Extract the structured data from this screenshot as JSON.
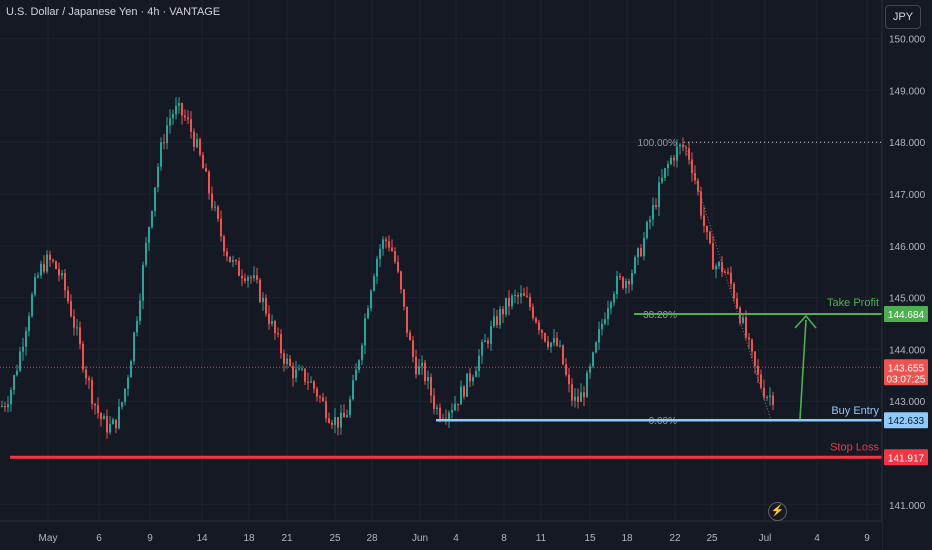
{
  "header": {
    "symbol_title": "U.S. Dollar / Japanese Yen · 4h · VANTAGE",
    "currency_button": "JPY"
  },
  "colors": {
    "background": "#151924",
    "grid": "#1e222d",
    "up": "#26a69a",
    "down": "#ef5350",
    "take_profit": "#4caf50",
    "buy_entry": "#90caf9",
    "stop_loss": "#f23645",
    "axis_text": "#b2b5be"
  },
  "icons": {
    "alert": "lightning-bolt-icon"
  },
  "chart_data": {
    "type": "candlestick",
    "y_axis": {
      "range": [
        140.7,
        150.3
      ],
      "ticks": [
        "150.000",
        "149.000",
        "148.000",
        "147.000",
        "146.000",
        "145.000",
        "144.000",
        "143.000",
        "141.000"
      ]
    },
    "x_axis": {
      "ticks": [
        "May",
        "6",
        "9",
        "14",
        "18",
        "21",
        "25",
        "28",
        "Jun",
        "4",
        "8",
        "11",
        "15",
        "18",
        "22",
        "25",
        "Jul",
        "4",
        "9"
      ]
    },
    "anchor_points": [
      {
        "x": "May",
        "y": 142.9
      },
      {
        "x": "6",
        "y": 145.7
      },
      {
        "x": "9",
        "y": 142.5
      },
      {
        "x": "14",
        "y": 148.6
      },
      {
        "x": "18",
        "y": 145.5
      },
      {
        "x": "21",
        "y": 143.5
      },
      {
        "x": "25",
        "y": 142.6
      },
      {
        "x": "28",
        "y": 146.1
      },
      {
        "x": "Jun",
        "y": 143.6
      },
      {
        "x": "4",
        "y": 142.8
      },
      {
        "x": "8",
        "y": 145.0
      },
      {
        "x": "11",
        "y": 144.1
      },
      {
        "x": "15",
        "y": 143.0
      },
      {
        "x": "18",
        "y": 145.3
      },
      {
        "x": "22",
        "y": 147.9
      },
      {
        "x": "25",
        "y": 145.6
      },
      {
        "x": "Jul",
        "y": 143.1
      }
    ],
    "current_price": {
      "value": "143.655",
      "countdown": "03:07:25"
    },
    "levels": [
      {
        "name": "Take Profit",
        "value": "144.684"
      },
      {
        "name": "Buy Entry",
        "value": "142.633"
      },
      {
        "name": "Stop Loss",
        "value": "141.917"
      }
    ],
    "fibonacci": [
      {
        "label": "100.00%",
        "price": 148.0
      },
      {
        "label": "38.20%",
        "price": 144.684
      },
      {
        "label": "0.00%",
        "price": 142.633
      }
    ]
  }
}
